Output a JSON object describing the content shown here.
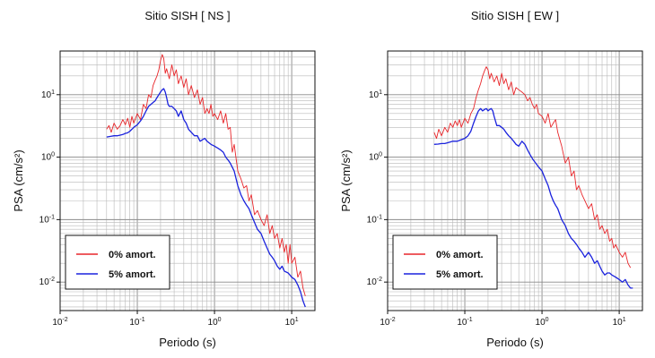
{
  "chart_data": [
    {
      "type": "line",
      "title": "Sitio SISH [ NS ]",
      "xlabel": "Periodo (s)",
      "ylabel": "PSA (cm/s²)",
      "x_scale": "log",
      "y_scale": "log",
      "xlim": [
        0.01,
        20
      ],
      "ylim": [
        0.0035,
        50
      ],
      "x_ticks": [
        {
          "value": 0.01,
          "base": "10",
          "exp": "-2"
        },
        {
          "value": 0.1,
          "base": "10",
          "exp": "-1"
        },
        {
          "value": 1,
          "base": "10",
          "exp": "0"
        },
        {
          "value": 10,
          "base": "10",
          "exp": "1"
        }
      ],
      "y_ticks": [
        {
          "value": 0.01,
          "base": "10",
          "exp": "-2"
        },
        {
          "value": 0.1,
          "base": "10",
          "exp": "-1"
        },
        {
          "value": 1,
          "base": "10",
          "exp": "0"
        },
        {
          "value": 10,
          "base": "10",
          "exp": "1"
        }
      ],
      "grid": true,
      "legend_position": "bottom-left",
      "series": [
        {
          "name": "0% amort.",
          "color": "#e8262a",
          "x": [
            0.04,
            0.043,
            0.046,
            0.05,
            0.055,
            0.06,
            0.065,
            0.07,
            0.075,
            0.08,
            0.085,
            0.09,
            0.1,
            0.11,
            0.12,
            0.13,
            0.14,
            0.15,
            0.16,
            0.17,
            0.18,
            0.19,
            0.2,
            0.21,
            0.22,
            0.23,
            0.24,
            0.26,
            0.28,
            0.3,
            0.32,
            0.34,
            0.37,
            0.4,
            0.43,
            0.46,
            0.5,
            0.55,
            0.6,
            0.65,
            0.7,
            0.75,
            0.8,
            0.85,
            0.9,
            0.95,
            1.0,
            1.1,
            1.2,
            1.3,
            1.4,
            1.5,
            1.6,
            1.7,
            1.8,
            2.0,
            2.2,
            2.4,
            2.6,
            2.8,
            3.0,
            3.3,
            3.6,
            4.0,
            4.4,
            4.8,
            5.2,
            5.6,
            6.0,
            6.5,
            7.0,
            7.5,
            8.0,
            8.5,
            9.0,
            9.5,
            10,
            11,
            12,
            13,
            14,
            15
          ],
          "y": [
            2.8,
            3.2,
            2.5,
            3.5,
            2.8,
            3.2,
            4.0,
            3.3,
            4.2,
            3.0,
            4.5,
            3.5,
            5.0,
            4.0,
            7.0,
            6.0,
            10,
            9.0,
            14,
            17,
            20,
            25,
            35,
            44,
            38,
            22,
            26,
            18,
            30,
            20,
            25,
            15,
            20,
            13,
            18,
            10,
            14,
            9,
            12,
            7,
            9,
            5,
            6,
            5,
            7,
            4.5,
            5.0,
            4.0,
            5.5,
            3.5,
            5.0,
            2.8,
            3.0,
            1.2,
            1.6,
            0.6,
            0.45,
            0.32,
            0.35,
            0.2,
            0.25,
            0.12,
            0.14,
            0.1,
            0.08,
            0.12,
            0.06,
            0.08,
            0.05,
            0.06,
            0.035,
            0.05,
            0.03,
            0.04,
            0.02,
            0.04,
            0.02,
            0.025,
            0.012,
            0.015,
            0.008,
            0.006
          ]
        },
        {
          "name": "5% amort.",
          "color": "#1a22dd",
          "x": [
            0.04,
            0.045,
            0.05,
            0.055,
            0.06,
            0.065,
            0.07,
            0.075,
            0.08,
            0.085,
            0.09,
            0.1,
            0.11,
            0.12,
            0.13,
            0.14,
            0.15,
            0.16,
            0.17,
            0.18,
            0.19,
            0.2,
            0.21,
            0.22,
            0.23,
            0.24,
            0.25,
            0.26,
            0.28,
            0.3,
            0.32,
            0.34,
            0.37,
            0.4,
            0.43,
            0.46,
            0.5,
            0.55,
            0.6,
            0.65,
            0.7,
            0.75,
            0.8,
            0.9,
            1.0,
            1.1,
            1.2,
            1.3,
            1.4,
            1.5,
            1.6,
            1.8,
            2.0,
            2.2,
            2.4,
            2.6,
            2.8,
            3.0,
            3.3,
            3.6,
            4.0,
            4.4,
            4.8,
            5.2,
            5.6,
            6.0,
            6.5,
            7.0,
            7.5,
            8.0,
            9.0,
            10,
            11,
            12,
            13,
            14,
            15
          ],
          "y": [
            2.1,
            2.15,
            2.2,
            2.2,
            2.25,
            2.3,
            2.4,
            2.45,
            2.6,
            2.8,
            3.0,
            3.3,
            3.8,
            4.5,
            5.5,
            6.5,
            7.0,
            7.5,
            8.0,
            9.0,
            10,
            11,
            12,
            12.5,
            11,
            9,
            7,
            6.5,
            6.5,
            6.0,
            5.5,
            4.5,
            5.5,
            4.0,
            3.5,
            2.8,
            2.5,
            2.2,
            2.2,
            1.8,
            1.9,
            2.0,
            1.8,
            1.6,
            1.5,
            1.4,
            1.3,
            1.2,
            1.0,
            0.9,
            0.8,
            0.6,
            0.35,
            0.25,
            0.2,
            0.17,
            0.15,
            0.12,
            0.09,
            0.07,
            0.06,
            0.045,
            0.035,
            0.028,
            0.025,
            0.022,
            0.018,
            0.016,
            0.018,
            0.015,
            0.014,
            0.012,
            0.011,
            0.009,
            0.007,
            0.005,
            0.004
          ]
        }
      ]
    },
    {
      "type": "line",
      "title": "Sitio SISH [ EW ]",
      "xlabel": "Periodo (s)",
      "ylabel": "PSA (cm/s²)",
      "x_scale": "log",
      "y_scale": "log",
      "xlim": [
        0.01,
        20
      ],
      "ylim": [
        0.0035,
        50
      ],
      "x_ticks": [
        {
          "value": 0.01,
          "base": "10",
          "exp": "-2"
        },
        {
          "value": 0.1,
          "base": "10",
          "exp": "-1"
        },
        {
          "value": 1,
          "base": "10",
          "exp": "0"
        },
        {
          "value": 10,
          "base": "10",
          "exp": "1"
        }
      ],
      "y_ticks": [
        {
          "value": 0.01,
          "base": "10",
          "exp": "-2"
        },
        {
          "value": 0.1,
          "base": "10",
          "exp": "-1"
        },
        {
          "value": 1,
          "base": "10",
          "exp": "0"
        },
        {
          "value": 10,
          "base": "10",
          "exp": "1"
        }
      ],
      "grid": true,
      "legend_position": "bottom-left",
      "series": [
        {
          "name": "0% amort.",
          "color": "#e8262a",
          "x": [
            0.04,
            0.043,
            0.046,
            0.05,
            0.055,
            0.06,
            0.065,
            0.07,
            0.075,
            0.08,
            0.085,
            0.09,
            0.1,
            0.11,
            0.12,
            0.13,
            0.14,
            0.15,
            0.16,
            0.17,
            0.18,
            0.19,
            0.2,
            0.21,
            0.22,
            0.24,
            0.26,
            0.28,
            0.3,
            0.32,
            0.34,
            0.37,
            0.4,
            0.43,
            0.46,
            0.5,
            0.55,
            0.6,
            0.65,
            0.7,
            0.75,
            0.8,
            0.85,
            0.9,
            1.0,
            1.1,
            1.2,
            1.3,
            1.4,
            1.5,
            1.6,
            1.8,
            2.0,
            2.2,
            2.4,
            2.6,
            2.8,
            3.0,
            3.3,
            3.6,
            4.0,
            4.4,
            4.8,
            5.2,
            5.6,
            6.0,
            6.5,
            7.0,
            7.5,
            8.0,
            8.5,
            9.0,
            10,
            11,
            12,
            13,
            14
          ],
          "y": [
            2.5,
            2.0,
            2.8,
            2.2,
            3.0,
            2.5,
            3.5,
            3.0,
            3.8,
            3.2,
            4.0,
            3.0,
            4.2,
            3.5,
            5.0,
            6.0,
            9.0,
            12,
            15,
            20,
            24,
            28,
            25,
            18,
            22,
            16,
            20,
            14,
            22,
            15,
            18,
            12,
            16,
            10,
            13,
            12,
            11,
            10,
            8,
            9,
            7,
            6,
            7,
            5,
            4.5,
            3.5,
            5.0,
            3.0,
            3.5,
            4.0,
            2.5,
            1.5,
            0.8,
            1.0,
            0.5,
            0.6,
            0.3,
            0.35,
            0.25,
            0.2,
            0.15,
            0.18,
            0.1,
            0.12,
            0.07,
            0.08,
            0.06,
            0.07,
            0.045,
            0.05,
            0.035,
            0.04,
            0.03,
            0.025,
            0.03,
            0.02,
            0.017
          ]
        },
        {
          "name": "5% amort.",
          "color": "#1a22dd",
          "x": [
            0.04,
            0.045,
            0.05,
            0.055,
            0.06,
            0.065,
            0.07,
            0.075,
            0.08,
            0.085,
            0.09,
            0.1,
            0.11,
            0.12,
            0.13,
            0.14,
            0.15,
            0.16,
            0.17,
            0.18,
            0.19,
            0.2,
            0.21,
            0.22,
            0.23,
            0.24,
            0.26,
            0.28,
            0.3,
            0.32,
            0.34,
            0.37,
            0.4,
            0.43,
            0.46,
            0.5,
            0.55,
            0.6,
            0.65,
            0.7,
            0.75,
            0.8,
            0.9,
            1.0,
            1.1,
            1.2,
            1.3,
            1.4,
            1.5,
            1.6,
            1.8,
            2.0,
            2.2,
            2.4,
            2.6,
            2.8,
            3.0,
            3.3,
            3.6,
            4.0,
            4.4,
            4.8,
            5.2,
            5.6,
            6.0,
            6.5,
            7.0,
            7.5,
            8.0,
            9.0,
            10,
            11,
            12,
            13,
            14,
            15
          ],
          "y": [
            1.6,
            1.62,
            1.65,
            1.65,
            1.7,
            1.75,
            1.8,
            1.8,
            1.8,
            1.85,
            1.9,
            2.0,
            2.2,
            2.6,
            3.5,
            4.5,
            5.5,
            6.0,
            5.5,
            5.8,
            6.0,
            5.5,
            5.8,
            6.0,
            5.5,
            4.5,
            3.2,
            3.2,
            3.0,
            2.8,
            2.5,
            2.2,
            2.0,
            1.8,
            1.6,
            1.5,
            1.8,
            1.6,
            1.3,
            1.1,
            0.95,
            0.85,
            0.7,
            0.6,
            0.45,
            0.35,
            0.25,
            0.2,
            0.17,
            0.15,
            0.1,
            0.08,
            0.06,
            0.05,
            0.045,
            0.04,
            0.035,
            0.03,
            0.025,
            0.03,
            0.025,
            0.02,
            0.022,
            0.018,
            0.015,
            0.013,
            0.014,
            0.014,
            0.013,
            0.012,
            0.011,
            0.01,
            0.011,
            0.009,
            0.008,
            0.008
          ]
        }
      ]
    }
  ]
}
